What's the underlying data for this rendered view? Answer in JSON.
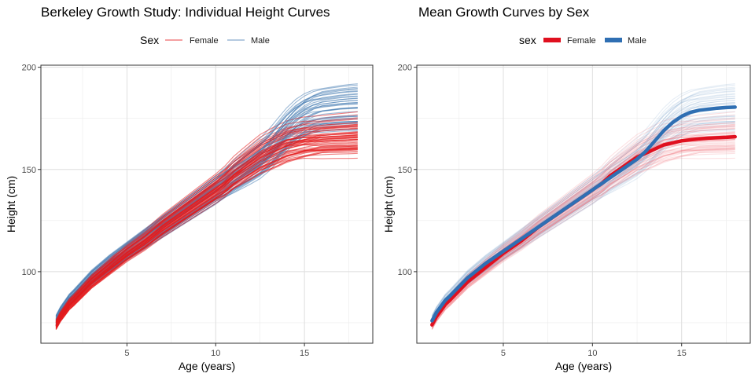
{
  "chart_data": [
    {
      "type": "line",
      "title": "Berkeley Growth Study: Individual Height Curves",
      "xlabel": "Age (years)",
      "ylabel": "Height (cm)",
      "xlim": [
        0.15,
        18.85
      ],
      "ylim": [
        65,
        201
      ],
      "x_ticks": [
        5,
        10,
        15
      ],
      "y_ticks": [
        100,
        150,
        200
      ],
      "grid": true,
      "legend": {
        "title": "Sex",
        "position": "top",
        "entries": [
          "Female",
          "Male"
        ]
      },
      "colors": {
        "Female": "#e41a1c",
        "Male": "#4a7fb5"
      },
      "x": [
        1,
        1.25,
        1.5,
        1.75,
        2,
        3,
        4,
        5,
        6,
        7,
        8,
        8.5,
        9,
        9.5,
        10,
        10.5,
        11,
        11.5,
        12,
        12.5,
        13,
        13.5,
        14,
        14.5,
        15,
        15.5,
        16,
        16.5,
        17,
        17.5,
        18
      ],
      "series": [
        {
          "name": "Female",
          "role": "reference",
          "values": [
            74.0,
            78.0,
            81.0,
            84.0,
            86.0,
            95.0,
            102.0,
            109.0,
            115.0,
            122.0,
            128.0,
            131.0,
            134.0,
            137.0,
            140.0,
            143.0,
            147.0,
            150.0,
            153.0,
            156.0,
            158.0,
            160.0,
            162.0,
            163.0,
            164.0,
            164.5,
            165.0,
            165.3,
            165.5,
            165.7,
            166.0
          ]
        },
        {
          "name": "Male",
          "role": "reference",
          "values": [
            76.0,
            80.0,
            83.0,
            86.0,
            88.0,
            97.0,
            104.0,
            110.0,
            116.0,
            122.0,
            128.0,
            131.0,
            134.0,
            137.0,
            140.0,
            143.0,
            146.0,
            149.0,
            152.0,
            155.0,
            159.0,
            164.0,
            169.0,
            173.0,
            176.0,
            178.0,
            179.0,
            179.5,
            180.0,
            180.3,
            180.5
          ]
        }
      ]
    },
    {
      "type": "line",
      "title": "Mean Growth Curves by Sex",
      "xlabel": "Age (years)",
      "ylabel": "Height (cm)",
      "xlim": [
        0.15,
        18.85
      ],
      "ylim": [
        65,
        201
      ],
      "x_ticks": [
        5,
        10,
        15
      ],
      "y_ticks": [
        100,
        150,
        200
      ],
      "grid": true,
      "legend": {
        "title": "sex",
        "position": "top",
        "entries": [
          "Female",
          "Male"
        ]
      },
      "colors": {
        "Female": "#e0101f",
        "Male": "#2f6fb3"
      },
      "x": [
        1,
        1.25,
        1.5,
        1.75,
        2,
        3,
        4,
        5,
        6,
        7,
        8,
        8.5,
        9,
        9.5,
        10,
        10.5,
        11,
        11.5,
        12,
        12.5,
        13,
        13.5,
        14,
        14.5,
        15,
        15.5,
        16,
        16.5,
        17,
        17.5,
        18
      ],
      "series": [
        {
          "name": "Female",
          "values": [
            74.0,
            78.0,
            81.0,
            84.0,
            86.0,
            95.0,
            102.0,
            109.0,
            115.0,
            122.0,
            128.0,
            131.0,
            134.0,
            137.0,
            140.0,
            143.0,
            147.0,
            150.0,
            153.0,
            156.0,
            158.0,
            160.0,
            162.0,
            163.0,
            164.0,
            164.5,
            165.0,
            165.3,
            165.5,
            165.7,
            166.0
          ]
        },
        {
          "name": "Male",
          "values": [
            76.0,
            80.0,
            83.0,
            86.0,
            88.0,
            97.0,
            104.0,
            110.0,
            116.0,
            122.0,
            128.0,
            131.0,
            134.0,
            137.0,
            140.0,
            143.0,
            146.0,
            149.0,
            152.0,
            155.0,
            159.0,
            164.0,
            169.0,
            173.0,
            176.0,
            178.0,
            179.0,
            179.5,
            180.0,
            180.3,
            180.5
          ]
        }
      ]
    }
  ]
}
